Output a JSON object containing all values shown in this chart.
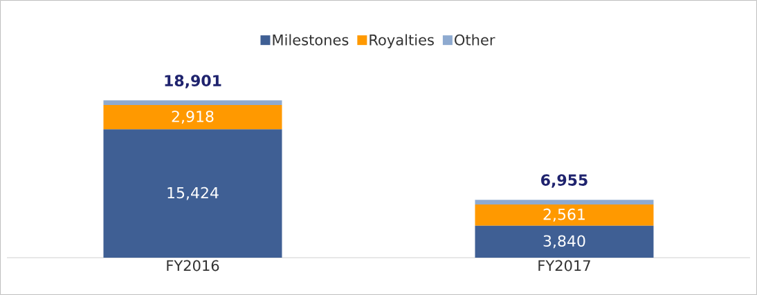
{
  "chart_data": {
    "type": "bar",
    "stacked": true,
    "categories": [
      "FY2016",
      "FY2017"
    ],
    "series": [
      {
        "name": "Milestones",
        "color": "#3f5f94",
        "values": [
          15424,
          3840
        ],
        "value_labels": [
          "15,424",
          "3,840"
        ]
      },
      {
        "name": "Royalties",
        "color": "#ff9900",
        "values": [
          2918,
          2561
        ],
        "value_labels": [
          "2,918",
          "2,561"
        ]
      },
      {
        "name": "Other",
        "color": "#8eaad0",
        "values": [
          559,
          554
        ]
      }
    ],
    "totals": [
      "18,901",
      "6,955"
    ],
    "legend": "top"
  }
}
